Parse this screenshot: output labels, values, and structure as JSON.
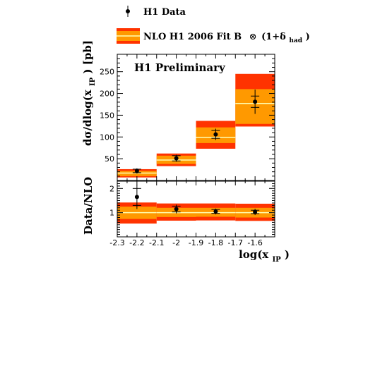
{
  "chart_data": [
    {
      "type": "bar",
      "panel": "upper",
      "annotation": "H1 Preliminary",
      "ylabel_main": "dσ/dlog(x",
      "ylabel_sub": "IP",
      "ylabel_tail": ") [pb]",
      "xlim": [
        -2.3,
        -1.5
      ],
      "ylim": [
        0,
        290
      ],
      "yticks": [
        50,
        100,
        150,
        200,
        250
      ],
      "bin_edges": [
        -2.3,
        -2.1,
        -1.9,
        -1.7,
        -1.5
      ],
      "series": [
        {
          "name": "H1 Data",
          "x": [
            -2.2,
            -2.0,
            -1.8,
            -1.6
          ],
          "values": [
            22,
            51,
            106,
            181
          ],
          "err_stat": [
            4,
            6,
            9,
            13
          ],
          "err_tot": [
            6,
            8,
            13,
            28
          ]
        },
        {
          "name": "NLO H1 2006 Fit B",
          "central": [
            17,
            47,
            99,
            177
          ],
          "inner_low": [
            10,
            38,
            86,
            130
          ],
          "inner_high": [
            22,
            57,
            122,
            210
          ],
          "outer_low": [
            7,
            33,
            73,
            124
          ],
          "outer_high": [
            26,
            62,
            137,
            245
          ]
        }
      ]
    },
    {
      "type": "bar",
      "panel": "lower",
      "ylabel": "Data/NLO",
      "xlabel_main": "log(x",
      "xlabel_sub": "IP",
      "xlabel_tail": ")",
      "xlim": [
        -2.3,
        -1.5
      ],
      "ylim": [
        0,
        2.3
      ],
      "yticks": [
        1,
        2
      ],
      "xticks": [
        "-2.3",
        "-2.2",
        "-2.1",
        "-2",
        "-1.9",
        "-1.8",
        "-1.7",
        "-1.6"
      ],
      "xtick_values": [
        -2.3,
        -2.2,
        -2.1,
        -2.0,
        -1.9,
        -1.8,
        -1.7,
        -1.6
      ],
      "series": [
        {
          "name": "ratio",
          "x": [
            -2.2,
            -2.0,
            -1.8,
            -1.6
          ],
          "values": [
            1.65,
            1.15,
            1.05,
            1.03
          ],
          "err_stat": [
            0.35,
            0.12,
            0.08,
            0.07
          ],
          "err_tot": [
            0.5,
            0.18,
            0.12,
            0.13
          ]
        },
        {
          "name": "band",
          "inner_low": [
            0.74,
            0.82,
            0.83,
            0.8
          ],
          "inner_high": [
            1.25,
            1.2,
            1.2,
            1.2
          ],
          "outer_low": [
            0.55,
            0.67,
            0.68,
            0.66
          ],
          "outer_high": [
            1.42,
            1.38,
            1.38,
            1.37
          ]
        }
      ]
    }
  ],
  "legend": {
    "data_label": "H1 Data",
    "nlo_label": "NLO H1 2006 Fit B",
    "otimes": "⊗",
    "factor_open": "(1+δ",
    "factor_sub": "had",
    "factor_close": ")"
  },
  "colors": {
    "outer_band": "#ff3300",
    "inner_band": "#ff9900",
    "central_line": "#ffffb3",
    "data": "#000000"
  }
}
